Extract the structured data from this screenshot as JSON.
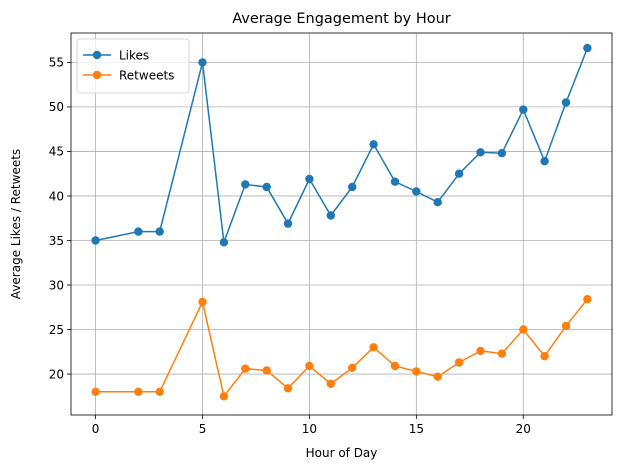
{
  "chart_data": {
    "type": "line",
    "title": "Average Engagement by Hour",
    "xlabel": "Hour of Day",
    "ylabel": "Average Likes / Retweets",
    "xlim": [
      -1.15,
      24.15
    ],
    "ylim": [
      15.4,
      58.3
    ],
    "xticks": [
      0,
      5,
      10,
      15,
      20
    ],
    "yticks": [
      20,
      25,
      30,
      35,
      40,
      45,
      50,
      55
    ],
    "grid": true,
    "legend_position": "top-left",
    "series": [
      {
        "name": "Likes",
        "color": "#1f77b4",
        "points": [
          [
            0,
            35.0
          ],
          [
            2,
            36.0
          ],
          [
            3,
            36.0
          ],
          [
            5,
            55.0
          ],
          [
            6,
            34.8
          ],
          [
            7,
            41.3
          ],
          [
            8,
            41.0
          ],
          [
            9,
            36.9
          ],
          [
            10,
            41.9
          ],
          [
            11,
            37.8
          ],
          [
            12,
            41.0
          ],
          [
            13,
            45.8
          ],
          [
            14,
            41.6
          ],
          [
            15,
            40.5
          ],
          [
            16,
            39.3
          ],
          [
            17,
            42.5
          ],
          [
            18,
            44.9
          ],
          [
            19,
            44.8
          ],
          [
            20,
            49.7
          ],
          [
            21,
            43.9
          ],
          [
            22,
            50.5
          ],
          [
            23,
            56.6
          ]
        ]
      },
      {
        "name": "Retweets",
        "color": "#ff7f0e",
        "points": [
          [
            0,
            18.0
          ],
          [
            2,
            18.0
          ],
          [
            3,
            18.0
          ],
          [
            5,
            28.1
          ],
          [
            6,
            17.5
          ],
          [
            7,
            20.6
          ],
          [
            8,
            20.4
          ],
          [
            9,
            18.4
          ],
          [
            10,
            20.9
          ],
          [
            11,
            18.9
          ],
          [
            12,
            20.7
          ],
          [
            13,
            23.0
          ],
          [
            14,
            20.9
          ],
          [
            15,
            20.3
          ],
          [
            16,
            19.7
          ],
          [
            17,
            21.3
          ],
          [
            18,
            22.6
          ],
          [
            19,
            22.3
          ],
          [
            20,
            25.0
          ],
          [
            21,
            22.0
          ],
          [
            22,
            25.4
          ],
          [
            23,
            28.4
          ]
        ]
      }
    ]
  }
}
